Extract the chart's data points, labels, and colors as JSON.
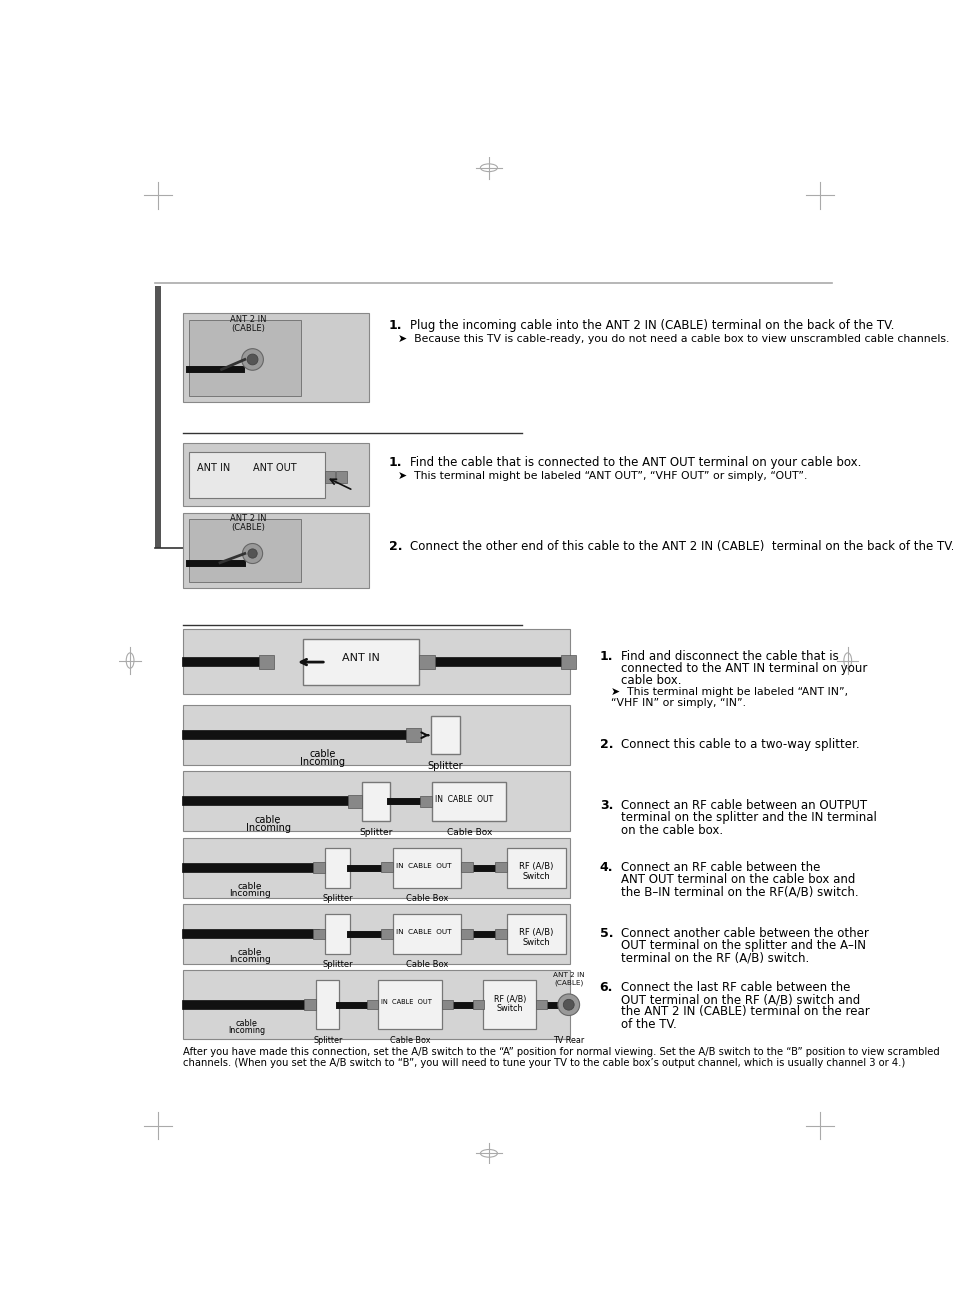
{
  "bg_color": "#ffffff",
  "page_width": 9.54,
  "page_height": 13.08,
  "section1": {
    "step1_bold": "1.",
    "step1_text": "Plug the incoming cable into the ANT 2 IN (CABLE) terminal on the back of the TV.",
    "step1_sub": "➤  Because this TV is cable-ready, you do not need a cable box to view unscrambled cable channels.",
    "diag_label1": "ANT 2 IN",
    "diag_label2": "(CABLE)"
  },
  "section2": {
    "step1_bold": "1.",
    "step1_text": "Find the cable that is connected to the ANT OUT terminal on your cable box.",
    "step1_sub": "➤  This terminal might be labeled “ANT OUT”, “VHF OUT” or simply, “OUT”.",
    "step2_bold": "2.",
    "step2_text": "Connect the other end of this cable to the ANT 2 IN (CABLE)  terminal on the back of the TV.",
    "label_ant_in": "ANT IN",
    "label_ant_out": "ANT OUT",
    "label_ant2in": "ANT 2 IN",
    "label_cable": "(CABLE)"
  },
  "section3": {
    "steps": [
      {
        "num": "1.",
        "lines": [
          "Find and disconnect the cable that is",
          "connected to the ANT IN terminal on your",
          "cable box."
        ],
        "sub": [
          "➤  This terminal might be labeled “ANT IN”,",
          "“VHF IN” or simply, “IN”."
        ]
      },
      {
        "num": "2.",
        "lines": [
          "Connect this cable to a two-way splitter."
        ],
        "sub": []
      },
      {
        "num": "3.",
        "lines": [
          "Connect an RF cable between an OUTPUT",
          "terminal on the splitter and the IN terminal",
          "on the cable box."
        ],
        "sub": []
      },
      {
        "num": "4.",
        "lines": [
          "Connect an RF cable between the",
          "ANT OUT terminal on the cable box and",
          "the B–IN terminal on the RF(A/B) switch."
        ],
        "sub": []
      },
      {
        "num": "5.",
        "lines": [
          "Connect another cable between the other",
          "OUT terminal on the splitter and the A–IN",
          "terminal on the RF (A/B) switch."
        ],
        "sub": []
      },
      {
        "num": "6.",
        "lines": [
          "Connect the last RF cable between the",
          "OUT terminal on the RF (A/B) switch and",
          "the ANT 2 IN (CABLE) terminal on the rear",
          "of the TV."
        ],
        "sub": []
      }
    ],
    "footer1": "After you have made this connection, set the A/B switch to the “A” position for normal viewing. Set the A/B switch to the “B” position to view scrambled",
    "footer2": "channels. (When you set the A/B switch to “B”, you will need to tune your TV to the cable box’s output channel, which is usually channel 3 or 4.)"
  }
}
